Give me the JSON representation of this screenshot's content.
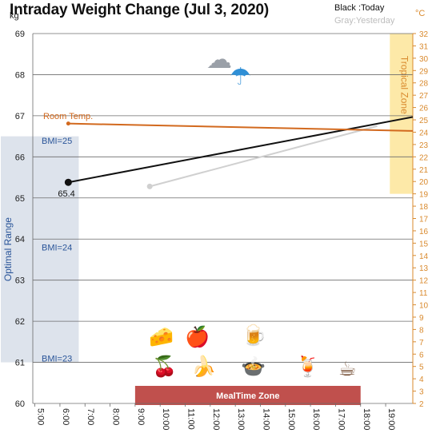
{
  "page": {
    "title": "Intraday Weight Change (Jul 3, 2020)",
    "legend_today": "Black :Today",
    "legend_yesterday": "Gray:Yesterday",
    "left_unit": "kg",
    "right_unit": "°C"
  },
  "chart_data": {
    "type": "line",
    "title": "Intraday Weight Change (Jul 3, 2020)",
    "x_unit": "time",
    "x_ticks": [
      "5:00",
      "6:00",
      "7:00",
      "8:00",
      "9:00",
      "10:00",
      "11:00",
      "12:00",
      "13:00",
      "14:00",
      "15:00",
      "16:00",
      "17:00",
      "18:00",
      "19:00"
    ],
    "xlim": [
      "4:55",
      "20:05"
    ],
    "y_left": {
      "unit": "kg",
      "ylim": [
        60,
        69
      ],
      "ticks": [
        60,
        61,
        62,
        63,
        64,
        65,
        66,
        67,
        68,
        69
      ],
      "grid": true
    },
    "y_right": {
      "unit": "°C",
      "ylim": [
        2,
        32
      ],
      "ticks": [
        2,
        3,
        4,
        5,
        6,
        7,
        8,
        9,
        10,
        11,
        12,
        13,
        14,
        15,
        16,
        17,
        18,
        19,
        20,
        21,
        22,
        23,
        24,
        25,
        26,
        27,
        28,
        29,
        30,
        31,
        32
      ],
      "color": "#d98a2e"
    },
    "series": [
      {
        "name": "Today",
        "color": "#111111",
        "axis": "left",
        "points": [
          {
            "x": "6:20",
            "y": 65.38
          },
          {
            "x": "20:05",
            "y": 66.97
          }
        ],
        "marker_label": "65.4"
      },
      {
        "name": "Yesterday",
        "color": "#d0d0d0",
        "axis": "left",
        "points": [
          {
            "x": "9:35",
            "y": 65.28
          },
          {
            "x": "18:40",
            "y": 66.75
          }
        ]
      },
      {
        "name": "Room Temp.",
        "color": "#d2691e",
        "axis": "right",
        "points": [
          {
            "x": "6:20",
            "y": 24.7
          },
          {
            "x": "20:05",
            "y": 24.1
          }
        ]
      }
    ],
    "bands": [
      {
        "label": "Optimal Range",
        "axis": "left",
        "from": 61.0,
        "to": 66.5,
        "x_from": "4:55",
        "x_to": "6:45",
        "color": "#dde3ec"
      },
      {
        "label": "Tropical Zone",
        "axis": "right",
        "from": 19,
        "to": 32,
        "x_from": "19:10",
        "x_to": "20:05",
        "color": "#fde9a8"
      },
      {
        "label": "MealTime Zone",
        "x_from": "9:00",
        "x_to": "18:00",
        "color": "#c0504d"
      }
    ],
    "annotations": [
      {
        "text": "BMI=25",
        "y": 66.4
      },
      {
        "text": "BMI=24",
        "y": 63.8
      },
      {
        "text": "BMI=23",
        "y": 61.1
      },
      {
        "text": "Room Temp.",
        "y": 67.0
      }
    ],
    "weather_icons": [
      "cloud-icon",
      "umbrella-icon"
    ],
    "food_icons": [
      "cheese-icon",
      "apple-icon",
      "beer-icon",
      "cherries-icon",
      "banana-icon",
      "pot-icon",
      "juice-icon",
      "coffee-icon"
    ]
  }
}
